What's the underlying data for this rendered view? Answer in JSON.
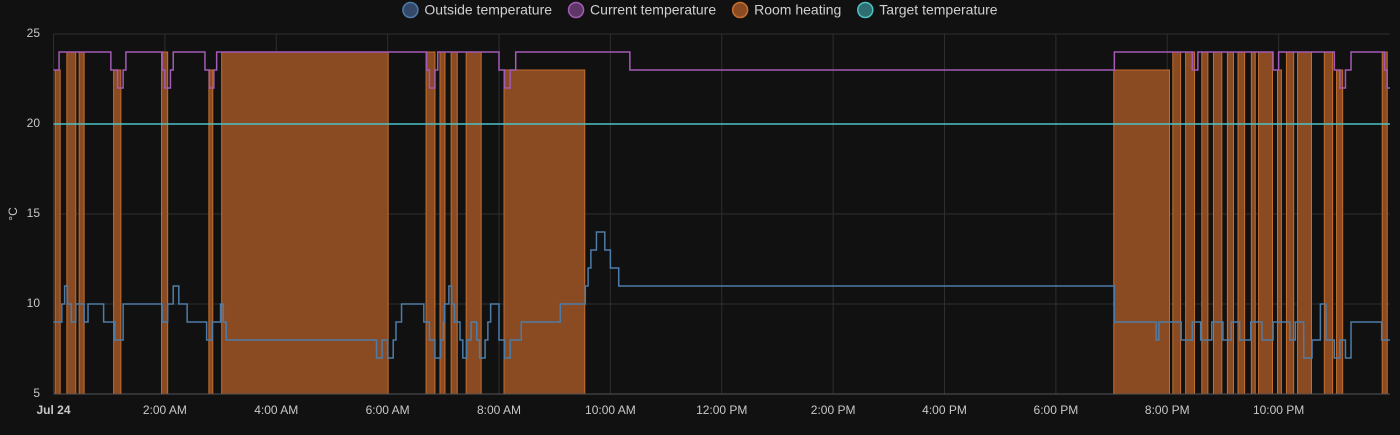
{
  "chart_data": {
    "type": "step-line",
    "y_label": "°C",
    "xlim": [
      0,
      24
    ],
    "xticks": [
      {
        "value": 0,
        "label": "Jul 24"
      },
      {
        "value": 2,
        "label": "2:00 AM"
      },
      {
        "value": 4,
        "label": "4:00 AM"
      },
      {
        "value": 6,
        "label": "6:00 AM"
      },
      {
        "value": 8,
        "label": "8:00 AM"
      },
      {
        "value": 10,
        "label": "10:00 AM"
      },
      {
        "value": 12,
        "label": "12:00 PM"
      },
      {
        "value": 14,
        "label": "2:00 PM"
      },
      {
        "value": 16,
        "label": "4:00 PM"
      },
      {
        "value": 18,
        "label": "6:00 PM"
      },
      {
        "value": 20,
        "label": "8:00 PM"
      },
      {
        "value": 22,
        "label": "10:00 PM"
      }
    ],
    "ylim": [
      5,
      25
    ],
    "yticks": [
      5,
      10,
      15,
      20,
      25
    ],
    "grid": true,
    "legend": "top",
    "series": [
      {
        "name": "Outside temperature",
        "color": "#4e7ca8",
        "fill": "#34496a",
        "x": [
          0,
          0.15,
          0.2,
          0.25,
          0.32,
          0.4,
          0.55,
          0.62,
          0.9,
          1.1,
          1.25,
          1.95,
          2.05,
          2.15,
          2.25,
          2.4,
          2.75,
          2.85,
          3.0,
          3.05,
          3.1,
          5.8,
          5.9,
          6.0,
          6.1,
          6.15,
          6.25,
          6.65,
          6.75,
          6.85,
          6.95,
          7.0,
          7.02,
          7.1,
          7.15,
          7.2,
          7.3,
          7.35,
          7.42,
          7.5,
          7.6,
          7.65,
          7.75,
          7.8,
          7.85,
          8.0,
          8.1,
          8.2,
          8.4,
          9.1,
          9.55,
          9.6,
          9.65,
          9.75,
          9.9,
          10.0,
          10.15,
          19.05,
          19.8,
          19.85,
          20.25,
          20.45,
          20.6,
          20.8,
          21.0,
          21.15,
          21.3,
          21.5,
          21.7,
          21.9,
          22.2,
          22.3,
          22.45,
          22.6,
          22.75,
          22.85,
          23.0,
          23.1,
          23.2,
          23.3,
          23.85
        ],
        "values": [
          9,
          10,
          11,
          10,
          9,
          10,
          9,
          10,
          9,
          8,
          10,
          9,
          10,
          11,
          10,
          9,
          8,
          9,
          10,
          9,
          8,
          7,
          8,
          7,
          8,
          9,
          10,
          9,
          8,
          7,
          8,
          9,
          10,
          11,
          10,
          9,
          8,
          7,
          8,
          9,
          8,
          7,
          8,
          9,
          10,
          8,
          7,
          8,
          9,
          10,
          11,
          12,
          13,
          14,
          13,
          12,
          11,
          9,
          8,
          9,
          8,
          9,
          8,
          9,
          8,
          9,
          8,
          9,
          8,
          9,
          8,
          9,
          7,
          8,
          10,
          8,
          7,
          8,
          7,
          9,
          8
        ]
      },
      {
        "name": "Current temperature",
        "color": "#a45bb5",
        "fill": "#5e3668",
        "x": [
          0,
          0.1,
          1.03,
          1.15,
          1.25,
          1.3,
          1.95,
          2.0,
          2.1,
          2.15,
          2.72,
          2.8,
          2.88,
          2.93,
          6.7,
          6.75,
          6.85,
          6.9,
          8.0,
          8.1,
          8.2,
          8.3,
          10.35,
          19.05,
          20.45,
          20.55,
          21.9,
          22.0,
          23.0,
          23.1,
          23.2,
          23.3,
          23.9,
          23.95
        ],
        "values": [
          23,
          24,
          23,
          22,
          23,
          24,
          23,
          22,
          23,
          24,
          23,
          22,
          23,
          24,
          23,
          22,
          23,
          24,
          23,
          22,
          23,
          24,
          23,
          24,
          23,
          24,
          23,
          24,
          23,
          22,
          23,
          24,
          23,
          22
        ]
      },
      {
        "name": "Room heating",
        "color": "#c46f2f",
        "fill": "#8a4a22",
        "intervals": [
          [
            0.03,
            0.12
          ],
          [
            0.24,
            0.4
          ],
          [
            0.46,
            0.55
          ],
          [
            1.08,
            1.21
          ],
          [
            1.94,
            2.05
          ],
          [
            2.79,
            2.86
          ],
          [
            3.02,
            6.01
          ],
          [
            6.69,
            6.85
          ],
          [
            6.94,
            7.03
          ],
          [
            7.14,
            7.25
          ],
          [
            7.41,
            7.68
          ],
          [
            8.09,
            9.54
          ],
          [
            19.04,
            20.04
          ],
          [
            20.1,
            20.24
          ],
          [
            20.33,
            20.49
          ],
          [
            20.62,
            20.73
          ],
          [
            20.83,
            20.98
          ],
          [
            21.08,
            21.19
          ],
          [
            21.27,
            21.39
          ],
          [
            21.51,
            21.58
          ],
          [
            21.64,
            21.89
          ],
          [
            21.98,
            22.05
          ],
          [
            22.14,
            22.27
          ],
          [
            22.34,
            22.59
          ],
          [
            22.82,
            22.97
          ],
          [
            23.04,
            23.15
          ],
          [
            23.86,
            23.95
          ]
        ]
      },
      {
        "name": "Target temperature",
        "color": "#4ec1c4",
        "fill": "#2f6d70",
        "x": [
          0
        ],
        "values": [
          20
        ]
      }
    ]
  }
}
